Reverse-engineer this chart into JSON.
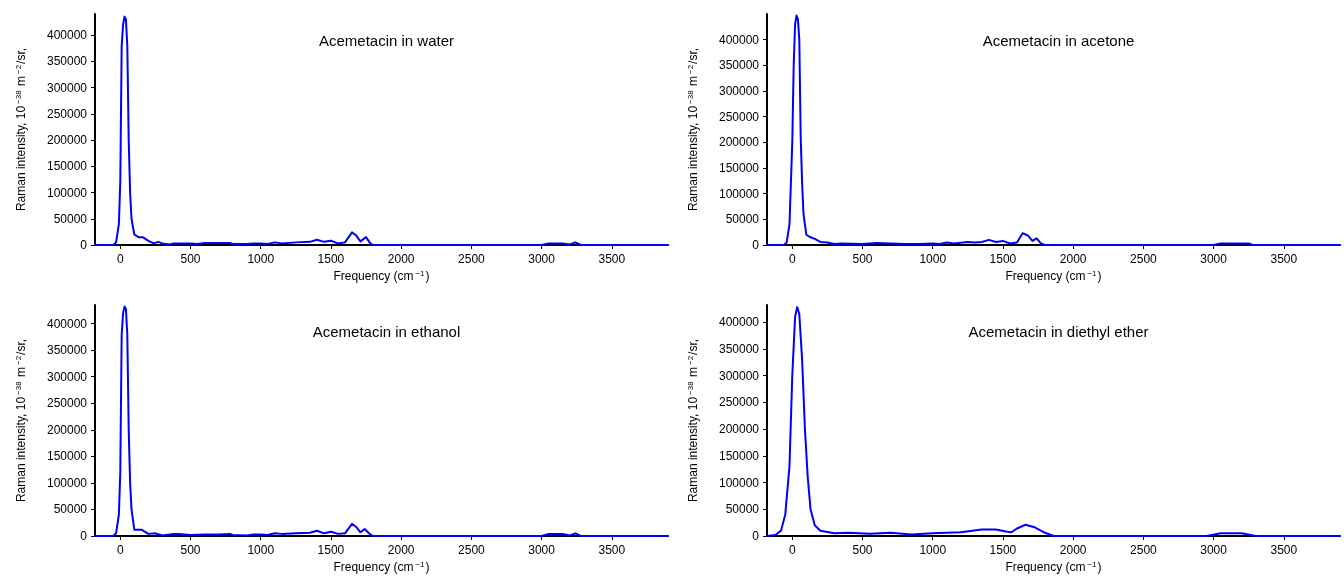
{
  "chart_data": [
    {
      "type": "line",
      "title": "Acemetacin in water",
      "xlabel": "Frequency (cm$^{−1}$)",
      "ylabel": "Raman intensity, 10$^{−38}$ m$^{−2}$/sr,",
      "xlim": [
        -180,
        3900
      ],
      "ylim": [
        0,
        440000
      ],
      "xticks": [
        0,
        500,
        1000,
        1500,
        2000,
        2500,
        3000,
        3500
      ],
      "yticks": [
        0,
        50000,
        100000,
        150000,
        200000,
        250000,
        300000,
        350000,
        400000
      ],
      "grid": false,
      "marker": "none",
      "series": [
        {
          "color": "#0000ff",
          "x": [
            -180,
            -50,
            -30,
            -10,
            0,
            10,
            20,
            30,
            40,
            50,
            60,
            70,
            80,
            100,
            130,
            160,
            200,
            240,
            270,
            300,
            350,
            380,
            500,
            550,
            600,
            780,
            800,
            900,
            950,
            1000,
            1050,
            1100,
            1150,
            1250,
            1350,
            1400,
            1450,
            1500,
            1550,
            1600,
            1650,
            1680,
            1710,
            1750,
            1780,
            1800,
            3000,
            3050,
            3150,
            3200,
            3240,
            3280,
            3900
          ],
          "values": [
            0,
            0,
            5000,
            40000,
            120000,
            380000,
            420000,
            435000,
            430000,
            380000,
            200000,
            100000,
            50000,
            20000,
            15000,
            15000,
            8000,
            3000,
            6000,
            3000,
            1000,
            3000,
            3000,
            2000,
            4000,
            4000,
            2000,
            2000,
            3000,
            3000,
            2000,
            5000,
            3000,
            5000,
            6000,
            10000,
            6000,
            8000,
            3000,
            5000,
            24000,
            18000,
            7000,
            15000,
            3000,
            0,
            0,
            3000,
            3000,
            1000,
            5000,
            0,
            0
          ]
        }
      ]
    },
    {
      "type": "line",
      "title": "Acemetacin in acetone",
      "xlabel": "Frequency (cm$^{−1}$)",
      "ylabel": "Raman intensity, 10$^{−38}$ m$^{−2}$/sr,",
      "xlim": [
        -180,
        3900
      ],
      "ylim": [
        0,
        450000
      ],
      "xticks": [
        0,
        500,
        1000,
        1500,
        2000,
        2500,
        3000,
        3500
      ],
      "yticks": [
        0,
        50000,
        100000,
        150000,
        200000,
        250000,
        300000,
        350000,
        400000
      ],
      "grid": false,
      "marker": "none",
      "series": [
        {
          "color": "#0000ff",
          "x": [
            -180,
            -60,
            -40,
            -20,
            0,
            10,
            20,
            30,
            40,
            50,
            60,
            70,
            80,
            100,
            130,
            160,
            200,
            250,
            300,
            350,
            500,
            600,
            800,
            900,
            1000,
            1050,
            1100,
            1150,
            1250,
            1300,
            1350,
            1400,
            1450,
            1500,
            1550,
            1600,
            1640,
            1680,
            1710,
            1740,
            1770,
            1800,
            3000,
            3050,
            3250,
            3280,
            3900
          ],
          "values": [
            0,
            0,
            5000,
            40000,
            200000,
            350000,
            430000,
            447000,
            440000,
            400000,
            210000,
            120000,
            60000,
            20000,
            15000,
            12000,
            6000,
            5000,
            2000,
            3000,
            2000,
            4000,
            2000,
            2000,
            3000,
            2000,
            5000,
            3000,
            6000,
            5000,
            6000,
            10000,
            6000,
            8000,
            3000,
            5000,
            23000,
            18000,
            8000,
            13000,
            3000,
            0,
            0,
            3000,
            3000,
            0,
            0
          ]
        }
      ]
    },
    {
      "type": "line",
      "title": "Acemetacin in ethanol",
      "xlabel": "Frequency (cm$^{−1}$)",
      "ylabel": "Raman intensity, 10$^{−38}$ m$^{−2}$/sr,",
      "xlim": [
        -180,
        3900
      ],
      "ylim": [
        0,
        435000
      ],
      "xticks": [
        0,
        500,
        1000,
        1500,
        2000,
        2500,
        3000,
        3500
      ],
      "yticks": [
        0,
        50000,
        100000,
        150000,
        200000,
        250000,
        300000,
        350000,
        400000
      ],
      "grid": false,
      "marker": "none",
      "series": [
        {
          "color": "#0000ff",
          "x": [
            -180,
            -50,
            -30,
            -10,
            0,
            10,
            20,
            30,
            40,
            50,
            60,
            70,
            80,
            100,
            150,
            200,
            250,
            300,
            380,
            420,
            500,
            600,
            700,
            780,
            800,
            900,
            950,
            1000,
            1050,
            1100,
            1150,
            1250,
            1350,
            1400,
            1450,
            1500,
            1550,
            1600,
            1650,
            1680,
            1710,
            1740,
            1780,
            1800,
            3000,
            3050,
            3150,
            3200,
            3240,
            3280,
            3900
          ],
          "values": [
            0,
            0,
            5000,
            40000,
            120000,
            380000,
            420000,
            432000,
            428000,
            380000,
            200000,
            100000,
            50000,
            12000,
            12000,
            4000,
            5000,
            1000,
            4000,
            4000,
            2000,
            3000,
            3000,
            4000,
            2000,
            1000,
            3000,
            3000,
            2000,
            5000,
            4000,
            5000,
            6000,
            10000,
            5000,
            8000,
            4000,
            5000,
            23000,
            17000,
            7000,
            13000,
            3000,
            0,
            0,
            4000,
            4000,
            1000,
            5000,
            0,
            0
          ]
        }
      ]
    },
    {
      "type": "line",
      "title": "Acemetacin in diethyl ether",
      "xlabel": "Frequency (cm$^{−1}$)",
      "ylabel": "Raman intensity, 10$^{−38}$ m$^{−2}$/sr,",
      "xlim": [
        -180,
        3900
      ],
      "ylim": [
        0,
        432000
      ],
      "xticks": [
        0,
        500,
        1000,
        1500,
        2000,
        2500,
        3000,
        3500
      ],
      "yticks": [
        0,
        50000,
        100000,
        150000,
        200000,
        250000,
        300000,
        350000,
        400000
      ],
      "grid": false,
      "marker": "none",
      "series": [
        {
          "color": "#0000ff",
          "x": [
            -180,
            -120,
            -80,
            -50,
            -20,
            0,
            20,
            35,
            50,
            70,
            90,
            110,
            130,
            160,
            200,
            300,
            400,
            550,
            700,
            850,
            1000,
            1200,
            1350,
            1450,
            1530,
            1560,
            1600,
            1660,
            1720,
            1800,
            1860,
            2950,
            3050,
            3200,
            3300,
            3900
          ],
          "values": [
            0,
            2000,
            10000,
            40000,
            130000,
            300000,
            410000,
            428000,
            415000,
            330000,
            200000,
            110000,
            50000,
            20000,
            10000,
            5000,
            6000,
            4000,
            6000,
            3000,
            5000,
            7000,
            12000,
            12000,
            8000,
            7000,
            14000,
            21000,
            17000,
            6000,
            0,
            0,
            5000,
            5000,
            0,
            0
          ]
        }
      ]
    }
  ]
}
